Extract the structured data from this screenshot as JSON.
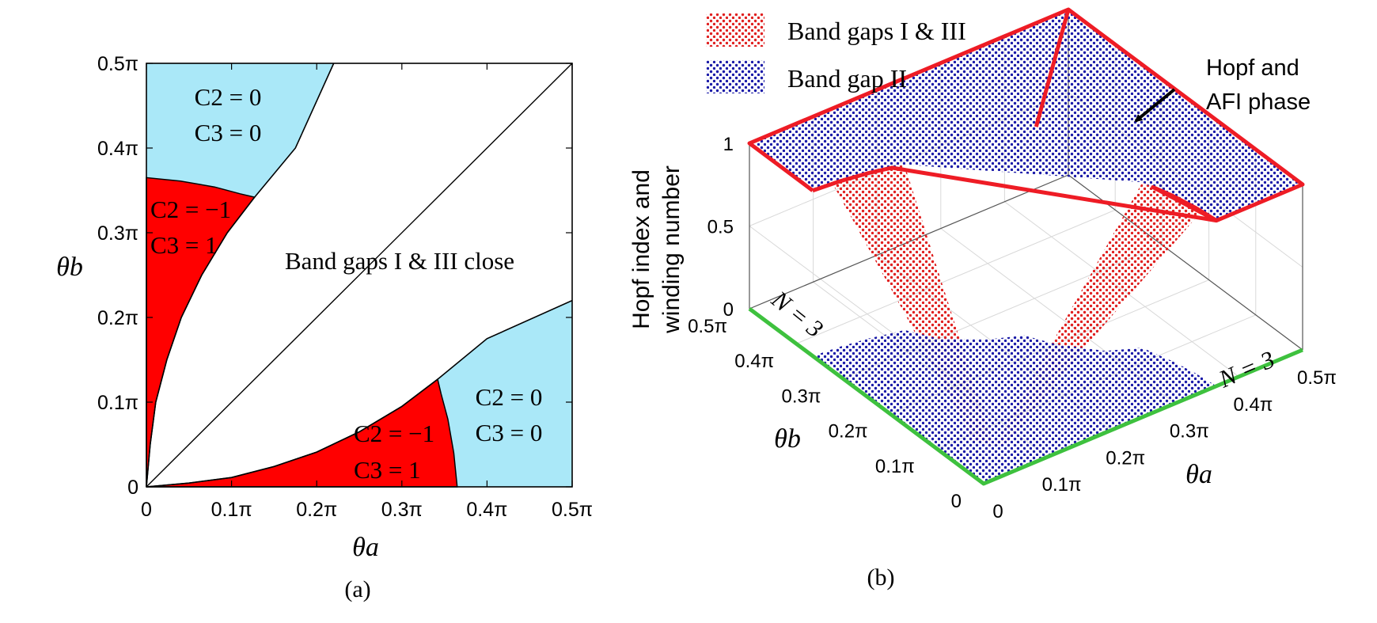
{
  "chart_data": [
    {
      "type": "region",
      "caption": "(a)",
      "xlabel": "θa",
      "ylabel": "θb",
      "xlim": [
        0,
        0.5
      ],
      "ylim": [
        0,
        0.5
      ],
      "xticks": [
        "0",
        "0.1π",
        "0.2π",
        "0.3π",
        "0.4π",
        "0.5π"
      ],
      "yticks": [
        "0",
        "0.1π",
        "0.2π",
        "0.3π",
        "0.4π",
        "0.5π"
      ],
      "colors": {
        "blue_region": "#aae8f8",
        "red_region": "#ff0000"
      },
      "boundaries": {
        "upper_wedge": [
          [
            0,
            0
          ],
          [
            0.0045,
            0.05
          ],
          [
            0.011,
            0.1
          ],
          [
            0.024,
            0.15
          ],
          [
            0.041,
            0.2
          ],
          [
            0.065,
            0.25
          ],
          [
            0.095,
            0.3
          ],
          [
            0.127,
            0.342
          ],
          [
            0.175,
            0.4
          ],
          [
            0.22,
            0.5
          ]
        ],
        "lower_wedge": [
          [
            0,
            0
          ],
          [
            0.05,
            0.0045
          ],
          [
            0.1,
            0.011
          ],
          [
            0.15,
            0.024
          ],
          [
            0.2,
            0.041
          ],
          [
            0.25,
            0.065
          ],
          [
            0.3,
            0.095
          ],
          [
            0.342,
            0.127
          ],
          [
            0.4,
            0.175
          ],
          [
            0.5,
            0.22
          ]
        ],
        "red_arc_upper": [
          [
            0,
            0.365
          ],
          [
            0.04,
            0.361
          ],
          [
            0.08,
            0.354
          ],
          [
            0.11,
            0.346
          ],
          [
            0.127,
            0.342
          ]
        ],
        "red_arc_lower": [
          [
            0.365,
            0
          ],
          [
            0.361,
            0.04
          ],
          [
            0.354,
            0.08
          ],
          [
            0.346,
            0.11
          ],
          [
            0.342,
            0.127
          ]
        ],
        "diagonal": [
          [
            0,
            0
          ],
          [
            0.5,
            0.5
          ]
        ]
      },
      "annotations": [
        {
          "text1": "C2 = 0",
          "text2": "C3 = 0",
          "region": "blue, upper-left"
        },
        {
          "text1": "C2 = −1",
          "text2": "C3 = 1",
          "region": "red, upper-left"
        },
        {
          "text": "Band gaps I & III close",
          "region": "white, center"
        },
        {
          "text1": "C2 = −1",
          "text2": "C3 = 1",
          "region": "red, lower-right"
        },
        {
          "text1": "C2 = 0",
          "text2": "C3 = 0",
          "region": "blue, lower-right"
        }
      ]
    },
    {
      "type": "surface3d",
      "caption": "(b)",
      "zlabel_line1": "Hopf index and",
      "zlabel_line2": "winding number",
      "xlabel": "θa",
      "ylabel": "θb",
      "xticks": [
        "0",
        "0.1π",
        "0.2π",
        "0.3π",
        "0.4π",
        "0.5π"
      ],
      "yticks": [
        "0",
        "0.1π",
        "0.2π",
        "0.3π",
        "0.4π",
        "0.5π"
      ],
      "zticks": [
        "0",
        "0.5",
        "1"
      ],
      "zlim": [
        0,
        1
      ],
      "legend": [
        {
          "label": "Band gaps I & III",
          "color": "#e02020"
        },
        {
          "label": "Band gap II",
          "color": "#1a1aa8"
        }
      ],
      "annotations": [
        {
          "line1": "Hopf and",
          "line2": "AFI phase"
        },
        {
          "text": "N = 3",
          "edge": "θb axis"
        },
        {
          "text": "N = 3",
          "edge": "θa axis"
        }
      ],
      "colors": {
        "boundary_red": "#ee1c25",
        "boundary_green": "#3ec13e"
      }
    }
  ]
}
